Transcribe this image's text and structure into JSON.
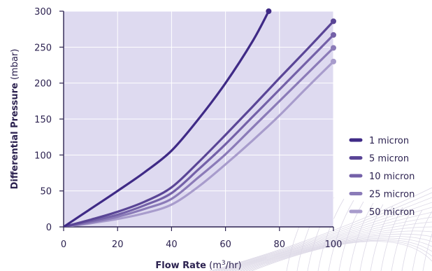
{
  "chart_data": {
    "type": "line",
    "title": "",
    "xlabel": {
      "bold": "Flow Rate",
      "regular": " (m",
      "sup": "3",
      "tail": "/hr)"
    },
    "ylabel": {
      "bold": "Differential Pressure",
      "regular": " (mbar)"
    },
    "xlim": [
      0,
      100
    ],
    "ylim": [
      0,
      300
    ],
    "xticks": [
      "0",
      "20",
      "40",
      "60",
      "80",
      "100"
    ],
    "yticks": [
      "0",
      "50",
      "100",
      "150",
      "200",
      "250",
      "300"
    ],
    "grid": true,
    "legend_position": "right",
    "plot_background": "#dedaf0",
    "grid_color": "#ffffff",
    "text_color": "#2c2250",
    "series": [
      {
        "name": "1 micron",
        "color": "#3f2a86",
        "x": [
          0,
          10,
          20,
          30,
          40,
          50,
          60,
          70,
          76
        ],
        "y": [
          0,
          25,
          50,
          76,
          106,
          150,
          200,
          258,
          300
        ]
      },
      {
        "name": "5 micron",
        "color": "#5a4596",
        "x": [
          0,
          10,
          20,
          30,
          40,
          50,
          60,
          70,
          80,
          90,
          100
        ],
        "y": [
          0,
          10,
          21,
          35,
          55,
          90,
          128,
          167,
          207,
          246,
          286
        ]
      },
      {
        "name": "10 micron",
        "color": "#7461a8",
        "x": [
          0,
          10,
          20,
          30,
          40,
          50,
          60,
          70,
          80,
          90,
          100
        ],
        "y": [
          0,
          8,
          17,
          30,
          47,
          80,
          115,
          153,
          191,
          229,
          267
        ]
      },
      {
        "name": "25 micron",
        "color": "#8b7bb8",
        "x": [
          0,
          10,
          20,
          30,
          40,
          50,
          60,
          70,
          80,
          90,
          100
        ],
        "y": [
          0,
          6,
          14,
          25,
          39,
          69,
          101,
          138,
          175,
          212,
          249
        ]
      },
      {
        "name": "50 micron",
        "color": "#a89ccc",
        "x": [
          0,
          10,
          20,
          30,
          40,
          50,
          60,
          70,
          80,
          90,
          100
        ],
        "y": [
          0,
          5,
          11,
          19,
          31,
          56,
          87,
          120,
          155,
          193,
          230
        ]
      }
    ]
  }
}
